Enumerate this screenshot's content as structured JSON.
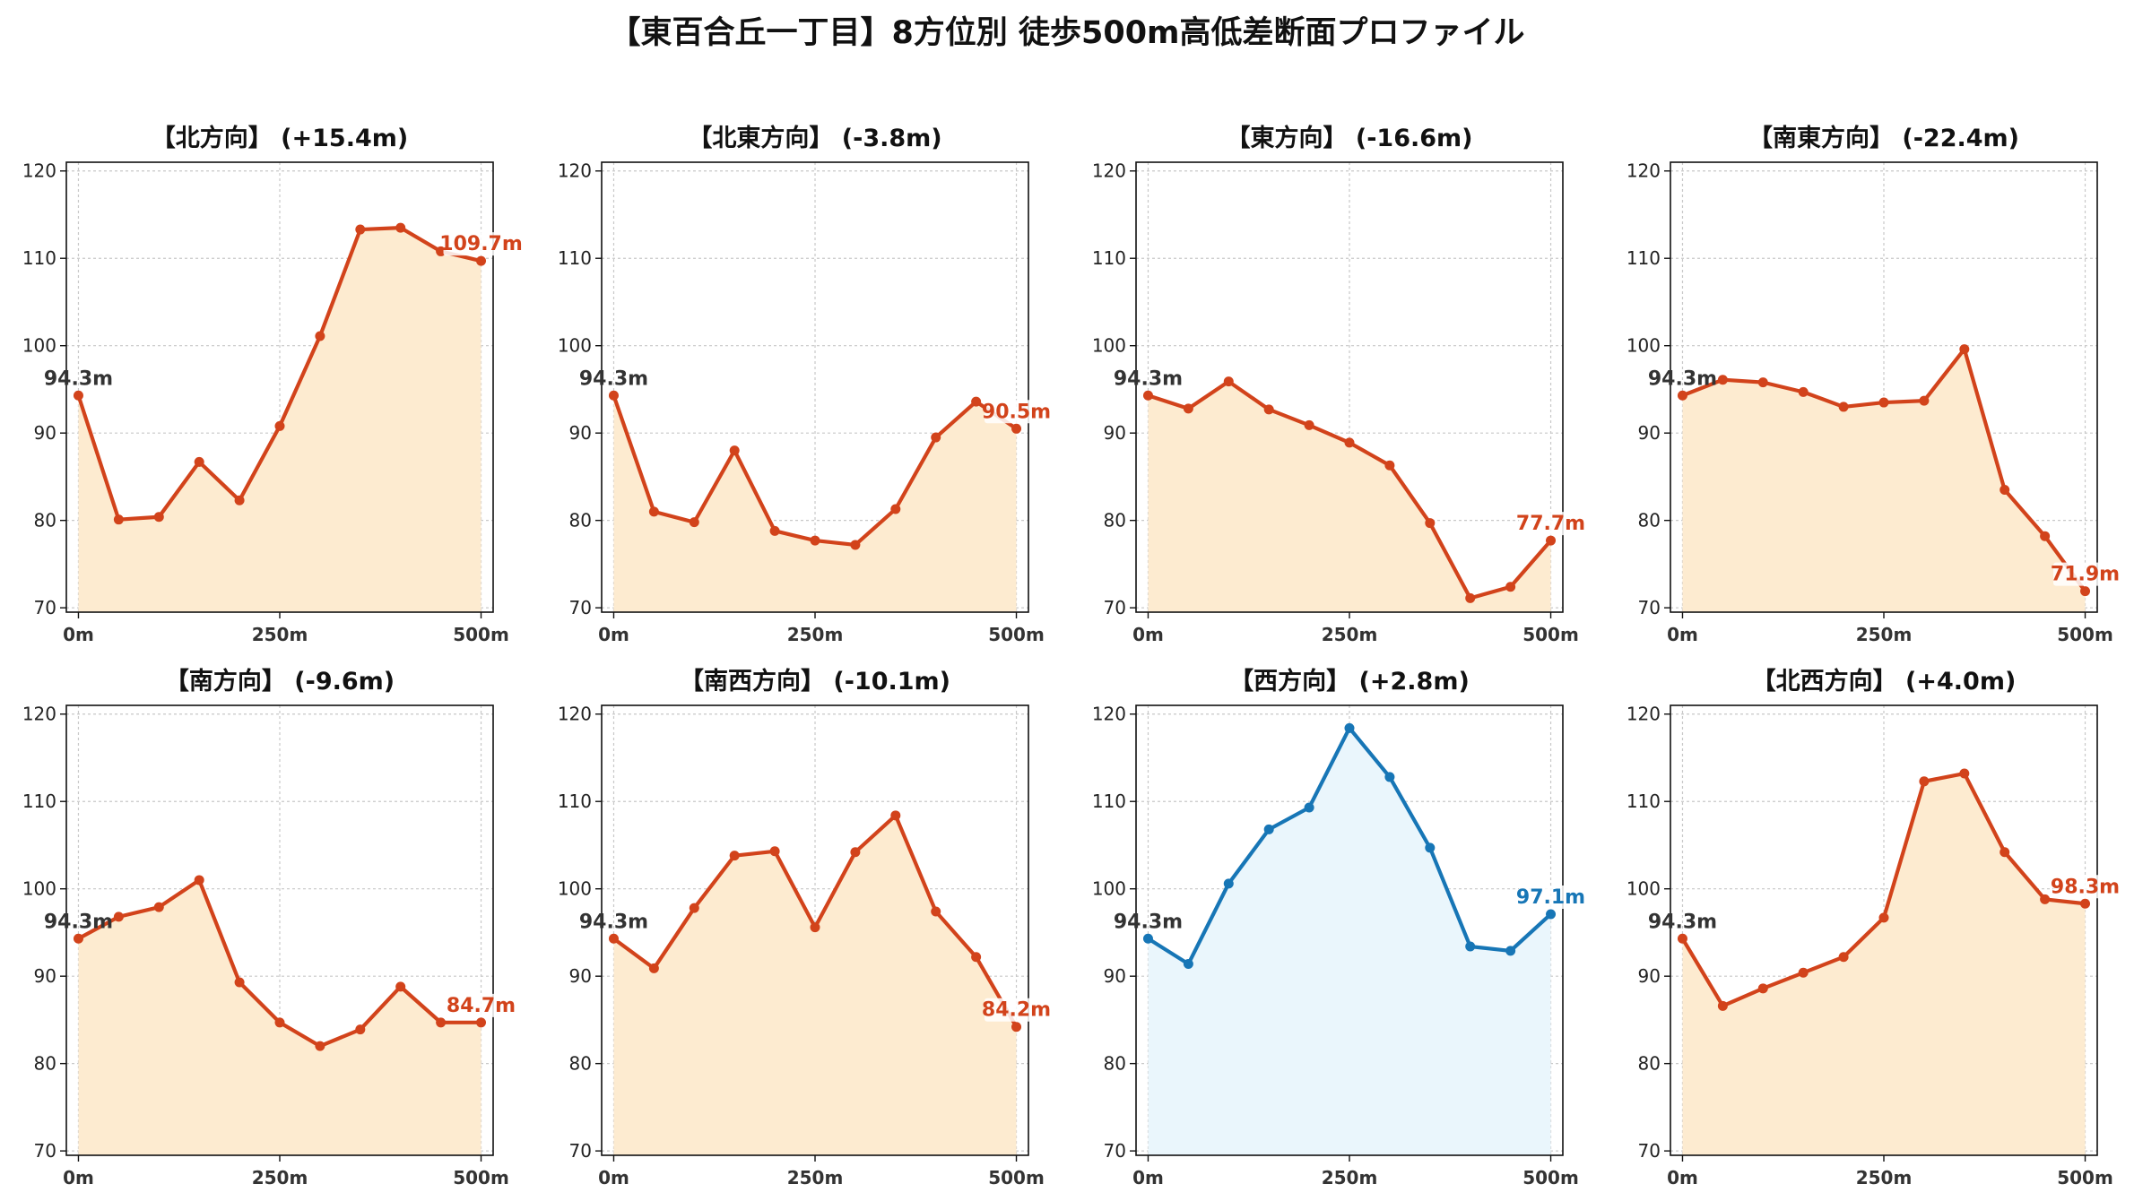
{
  "title": "【東百合丘一丁目】8方位別 徒歩500m高低差断面プロファイル",
  "colors": {
    "down_line": "#d2431b",
    "down_fill": "#fdebd0",
    "up_line": "#1776b6",
    "up_fill": "#eaf6fc",
    "start_label": "#333333",
    "grid": "#c8c8c8"
  },
  "chart_data": [
    {
      "type": "area",
      "title": "【北方向】 (+15.4m)",
      "style": "down",
      "x": [
        0,
        50,
        100,
        150,
        200,
        250,
        300,
        350,
        400,
        450,
        500
      ],
      "values": [
        94.3,
        80.1,
        80.4,
        86.7,
        82.3,
        90.8,
        101.1,
        113.3,
        113.5,
        110.8,
        109.7
      ],
      "start_label": "94.3m",
      "end_label": "109.7m",
      "xticks": [
        "0m",
        "250m",
        "500m"
      ],
      "yticks": [
        "70",
        "80",
        "90",
        "100",
        "110",
        "120"
      ],
      "ylim": [
        69.5,
        121
      ],
      "xlim": [
        -15,
        515
      ],
      "grid": true
    },
    {
      "type": "area",
      "title": "【北東方向】 (-3.8m)",
      "style": "down",
      "x": [
        0,
        50,
        100,
        150,
        200,
        250,
        300,
        350,
        400,
        450,
        500
      ],
      "values": [
        94.3,
        81.0,
        79.8,
        88.0,
        78.8,
        77.7,
        77.2,
        81.3,
        89.5,
        93.6,
        90.5
      ],
      "start_label": "94.3m",
      "end_label": "90.5m",
      "xticks": [
        "0m",
        "250m",
        "500m"
      ],
      "yticks": [
        "70",
        "80",
        "90",
        "100",
        "110",
        "120"
      ],
      "ylim": [
        69.5,
        121
      ],
      "xlim": [
        -15,
        515
      ],
      "grid": true
    },
    {
      "type": "area",
      "title": "【東方向】 (-16.6m)",
      "style": "down",
      "x": [
        0,
        50,
        100,
        150,
        200,
        250,
        300,
        350,
        400,
        450,
        500
      ],
      "values": [
        94.3,
        92.8,
        95.9,
        92.7,
        90.9,
        88.9,
        86.3,
        79.7,
        71.1,
        72.4,
        77.7
      ],
      "start_label": "94.3m",
      "end_label": "77.7m",
      "xticks": [
        "0m",
        "250m",
        "500m"
      ],
      "yticks": [
        "70",
        "80",
        "90",
        "100",
        "110",
        "120"
      ],
      "ylim": [
        69.5,
        121
      ],
      "xlim": [
        -15,
        515
      ],
      "grid": true
    },
    {
      "type": "area",
      "title": "【南東方向】 (-22.4m)",
      "style": "down",
      "x": [
        0,
        50,
        100,
        150,
        200,
        250,
        300,
        350,
        400,
        450,
        500
      ],
      "values": [
        94.3,
        96.1,
        95.8,
        94.7,
        93.0,
        93.5,
        93.7,
        99.6,
        83.5,
        78.2,
        71.9
      ],
      "start_label": "94.3m",
      "end_label": "71.9m",
      "xticks": [
        "0m",
        "250m",
        "500m"
      ],
      "yticks": [
        "70",
        "80",
        "90",
        "100",
        "110",
        "120"
      ],
      "ylim": [
        69.5,
        121
      ],
      "xlim": [
        -15,
        515
      ],
      "grid": true
    },
    {
      "type": "area",
      "title": "【南方向】 (-9.6m)",
      "style": "down",
      "x": [
        0,
        50,
        100,
        150,
        200,
        250,
        300,
        350,
        400,
        450,
        500
      ],
      "values": [
        94.3,
        96.8,
        97.9,
        101.0,
        89.3,
        84.7,
        82.0,
        83.9,
        88.8,
        84.7,
        84.7
      ],
      "start_label": "94.3m",
      "end_label": "84.7m",
      "xticks": [
        "0m",
        "250m",
        "500m"
      ],
      "yticks": [
        "70",
        "80",
        "90",
        "100",
        "110",
        "120"
      ],
      "ylim": [
        69.5,
        121
      ],
      "xlim": [
        -15,
        515
      ],
      "grid": true
    },
    {
      "type": "area",
      "title": "【南西方向】 (-10.1m)",
      "style": "down",
      "x": [
        0,
        50,
        100,
        150,
        200,
        250,
        300,
        350,
        400,
        450,
        500
      ],
      "values": [
        94.3,
        90.9,
        97.8,
        103.8,
        104.3,
        95.6,
        104.2,
        108.4,
        97.4,
        92.2,
        84.2
      ],
      "start_label": "94.3m",
      "end_label": "84.2m",
      "xticks": [
        "0m",
        "250m",
        "500m"
      ],
      "yticks": [
        "70",
        "80",
        "90",
        "100",
        "110",
        "120"
      ],
      "ylim": [
        69.5,
        121
      ],
      "xlim": [
        -15,
        515
      ],
      "grid": true
    },
    {
      "type": "area",
      "title": "【西方向】 (+2.8m)",
      "style": "up",
      "x": [
        0,
        50,
        100,
        150,
        200,
        250,
        300,
        350,
        400,
        450,
        500
      ],
      "values": [
        94.3,
        91.4,
        100.6,
        106.8,
        109.3,
        118.4,
        112.8,
        104.7,
        93.4,
        92.9,
        97.1
      ],
      "start_label": "94.3m",
      "end_label": "97.1m",
      "xticks": [
        "0m",
        "250m",
        "500m"
      ],
      "yticks": [
        "70",
        "80",
        "90",
        "100",
        "110",
        "120"
      ],
      "ylim": [
        69.5,
        121
      ],
      "xlim": [
        -15,
        515
      ],
      "grid": true
    },
    {
      "type": "area",
      "title": "【北西方向】 (+4.0m)",
      "style": "down",
      "x": [
        0,
        50,
        100,
        150,
        200,
        250,
        300,
        350,
        400,
        450,
        500
      ],
      "values": [
        94.3,
        86.6,
        88.6,
        90.4,
        92.2,
        96.7,
        112.3,
        113.2,
        104.2,
        98.8,
        98.3
      ],
      "start_label": "94.3m",
      "end_label": "98.3m",
      "xticks": [
        "0m",
        "250m",
        "500m"
      ],
      "yticks": [
        "70",
        "80",
        "90",
        "100",
        "110",
        "120"
      ],
      "ylim": [
        69.5,
        121
      ],
      "xlim": [
        -15,
        515
      ],
      "grid": true
    }
  ]
}
